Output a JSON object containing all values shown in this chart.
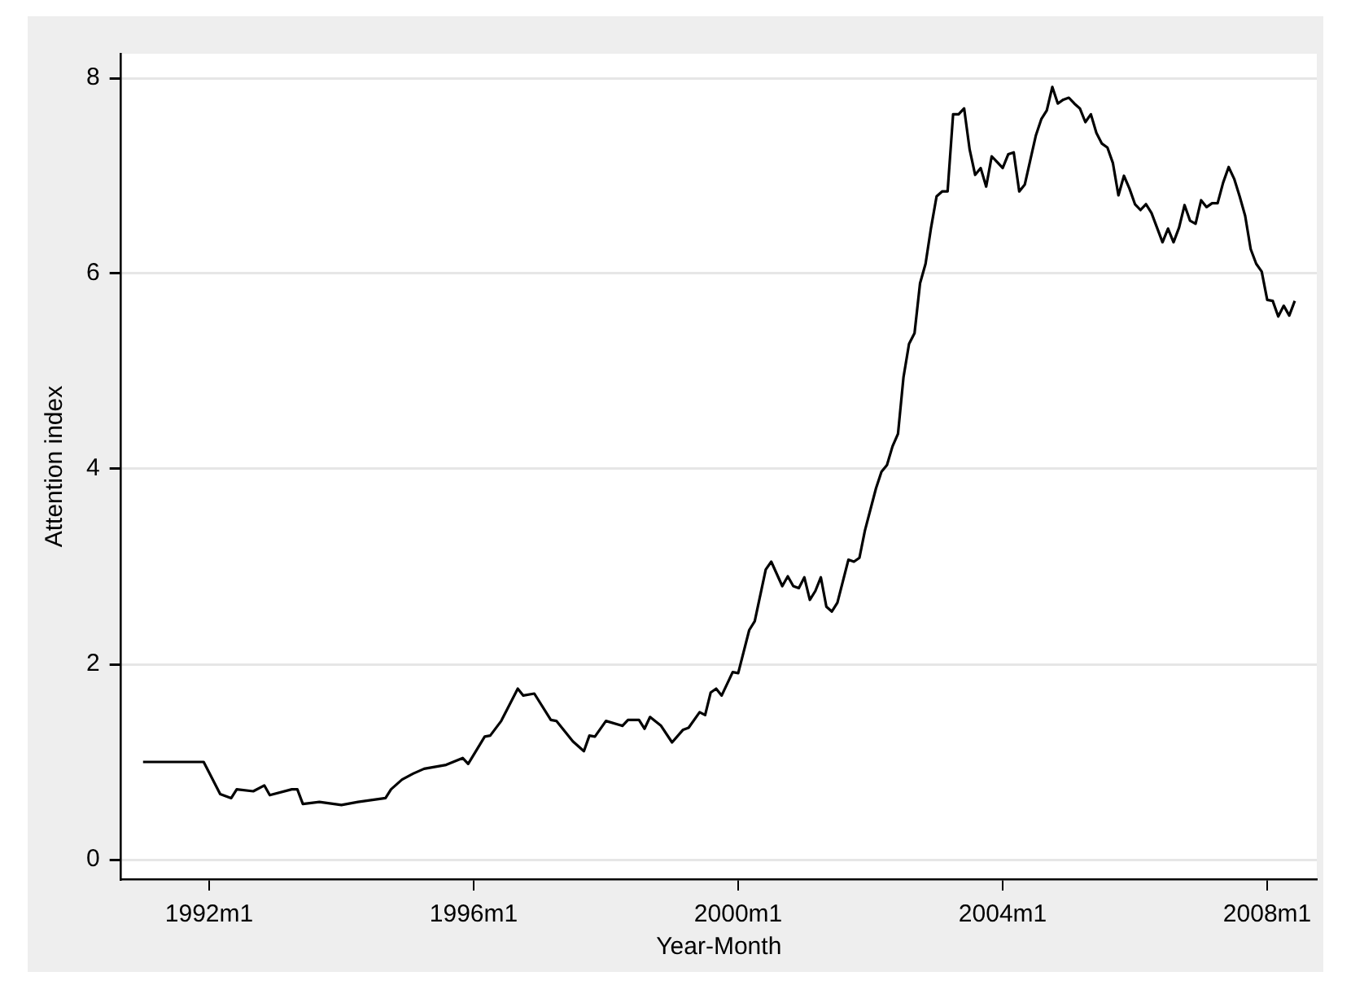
{
  "chart_data": {
    "type": "line",
    "xlabel": "Year-Month",
    "ylabel": "Attention index",
    "color": "#000000",
    "line_style": "solid",
    "grid": "y",
    "xlim": [
      "1990-09",
      "2008-10"
    ],
    "xticks": [
      {
        "value": "1992-01",
        "label": "1992m1"
      },
      {
        "value": "1996-01",
        "label": "1996m1"
      },
      {
        "value": "2000-01",
        "label": "2000m1"
      },
      {
        "value": "2004-01",
        "label": "2004m1"
      },
      {
        "value": "2008-01",
        "label": "2008m1"
      }
    ],
    "ylim": [
      -0.2,
      8.25
    ],
    "yticks": [
      0,
      2,
      4,
      6,
      8
    ],
    "x": [
      "1991-01",
      "1991-12",
      "1992-03",
      "1992-05",
      "1992-06",
      "1992-09",
      "1992-11",
      "1992-12",
      "1993-04",
      "1993-05",
      "1993-06",
      "1993-09",
      "1994-01",
      "1994-04",
      "1994-09",
      "1994-10",
      "1994-12",
      "1995-02",
      "1995-04",
      "1995-08",
      "1995-11",
      "1995-12",
      "1996-03",
      "1996-04",
      "1996-06",
      "1996-09",
      "1996-10",
      "1996-12",
      "1997-03",
      "1997-04",
      "1997-07",
      "1997-09",
      "1997-10",
      "1997-11",
      "1998-01",
      "1998-04",
      "1998-05",
      "1998-07",
      "1998-08",
      "1998-09",
      "1998-11",
      "1999-01",
      "1999-03",
      "1999-04",
      "1999-06",
      "1999-07",
      "1999-08",
      "1999-09",
      "1999-10",
      "1999-12",
      "2000-01",
      "2000-03",
      "2000-04",
      "2000-06",
      "2000-07",
      "2000-09",
      "2000-10",
      "2000-11",
      "2000-12",
      "2001-01",
      "2001-02",
      "2001-03",
      "2001-04",
      "2001-05",
      "2001-06",
      "2001-07",
      "2001-09",
      "2001-10",
      "2001-11",
      "2001-12",
      "2002-02",
      "2002-03",
      "2002-04",
      "2002-05",
      "2002-06",
      "2002-07",
      "2002-08",
      "2002-09",
      "2002-10",
      "2002-11",
      "2002-12",
      "2003-01",
      "2003-02",
      "2003-03",
      "2003-04",
      "2003-05",
      "2003-06",
      "2003-07",
      "2003-08",
      "2003-09",
      "2003-10",
      "2003-11",
      "2003-12",
      "2004-01",
      "2004-02",
      "2004-03",
      "2004-04",
      "2004-05",
      "2004-06",
      "2004-07",
      "2004-08",
      "2004-09",
      "2004-10",
      "2004-11",
      "2004-12",
      "2005-01",
      "2005-02",
      "2005-03",
      "2005-04",
      "2005-05",
      "2005-06",
      "2005-07",
      "2005-08",
      "2005-09",
      "2005-10",
      "2005-11",
      "2005-12",
      "2006-01",
      "2006-02",
      "2006-03",
      "2006-04",
      "2006-05",
      "2006-06",
      "2006-07",
      "2006-08",
      "2006-09",
      "2006-10",
      "2006-11",
      "2006-12",
      "2007-01",
      "2007-02",
      "2007-03",
      "2007-04",
      "2007-05",
      "2007-06",
      "2007-07",
      "2007-08",
      "2007-09",
      "2007-10",
      "2007-11",
      "2007-12",
      "2008-01",
      "2008-02",
      "2008-03",
      "2008-04",
      "2008-05",
      "2008-06"
    ],
    "values": [
      1.0,
      1.0,
      0.67,
      0.63,
      0.72,
      0.7,
      0.76,
      0.66,
      0.72,
      0.72,
      0.57,
      0.59,
      0.56,
      0.59,
      0.63,
      0.72,
      0.82,
      0.88,
      0.93,
      0.97,
      1.04,
      0.98,
      1.26,
      1.27,
      1.42,
      1.75,
      1.68,
      1.7,
      1.43,
      1.42,
      1.21,
      1.11,
      1.27,
      1.26,
      1.42,
      1.37,
      1.43,
      1.43,
      1.34,
      1.46,
      1.37,
      1.2,
      1.33,
      1.35,
      1.51,
      1.48,
      1.71,
      1.75,
      1.68,
      1.92,
      1.91,
      2.35,
      2.44,
      2.97,
      3.05,
      2.8,
      2.9,
      2.8,
      2.78,
      2.89,
      2.66,
      2.75,
      2.89,
      2.59,
      2.54,
      2.63,
      3.07,
      3.05,
      3.09,
      3.37,
      3.8,
      3.97,
      4.04,
      4.23,
      4.36,
      4.94,
      5.28,
      5.39,
      5.9,
      6.1,
      6.47,
      6.79,
      6.84,
      6.84,
      7.63,
      7.63,
      7.69,
      7.27,
      7.01,
      7.08,
      6.89,
      7.2,
      7.14,
      7.08,
      7.22,
      7.24,
      6.84,
      6.91,
      7.16,
      7.41,
      7.58,
      7.67,
      7.91,
      7.74,
      7.78,
      7.8,
      7.74,
      7.69,
      7.55,
      7.63,
      7.44,
      7.33,
      7.29,
      7.13,
      6.8,
      7.0,
      6.87,
      6.71,
      6.65,
      6.71,
      6.62,
      6.47,
      6.32,
      6.46,
      6.32,
      6.47,
      6.7,
      6.54,
      6.51,
      6.75,
      6.68,
      6.72,
      6.72,
      6.93,
      7.09,
      6.97,
      6.79,
      6.59,
      6.25,
      6.1,
      6.02,
      5.73,
      5.72,
      5.56,
      5.67,
      5.57,
      5.72
    ]
  }
}
